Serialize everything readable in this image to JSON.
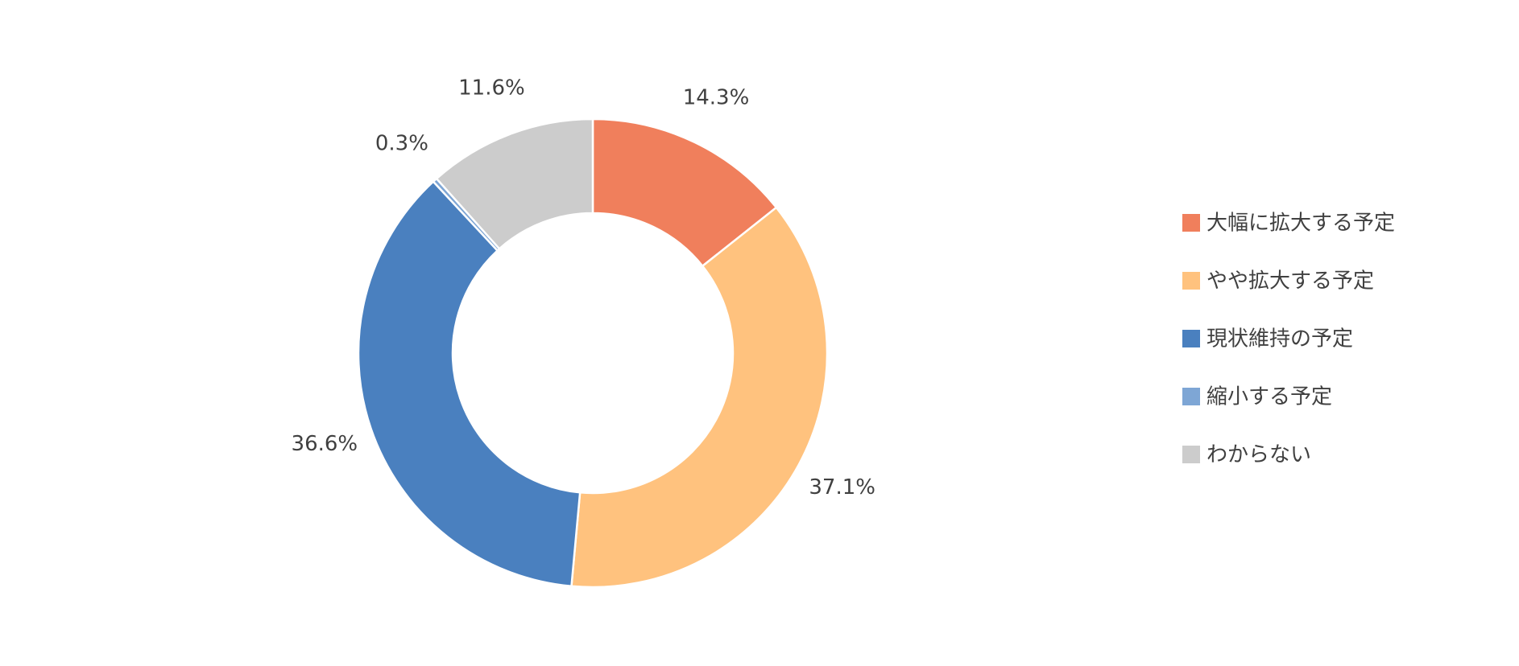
{
  "chart_data": {
    "type": "pie",
    "categories": [
      "大幅に拡大する予定",
      "やや拡大する予定",
      "現状維持の予定",
      "縮小する予定",
      "わからない"
    ],
    "values": [
      14.3,
      37.1,
      36.6,
      0.3,
      11.6
    ],
    "value_labels": [
      "14.3%",
      "37.1%",
      "36.6%",
      "0.3%",
      "11.6%"
    ],
    "colors": [
      "#f07f5c",
      "#ffc27e",
      "#4a80bf",
      "#7ea6d5",
      "#cccccc"
    ],
    "legend": "right"
  }
}
